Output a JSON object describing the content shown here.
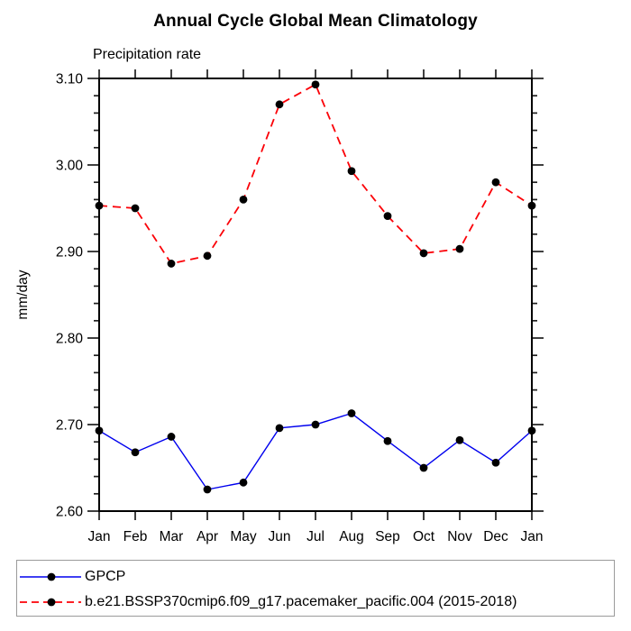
{
  "header": {
    "title": "Annual Cycle Global Mean Climatology",
    "subtitle": "Precipitation rate"
  },
  "chart_data": {
    "type": "line",
    "title": "Annual Cycle Global Mean Climatology",
    "subtitle": "Precipitation rate",
    "xlabel": "",
    "ylabel": "mm/day",
    "categories": [
      "Jan",
      "Feb",
      "Mar",
      "Apr",
      "May",
      "Jun",
      "Jul",
      "Aug",
      "Sep",
      "Oct",
      "Nov",
      "Dec",
      "Jan"
    ],
    "ylim": [
      2.6,
      3.1
    ],
    "y_major_step": 0.1,
    "y_minor_step": 0.02,
    "y_tick_labels": [
      "2.60",
      "2.70",
      "2.80",
      "2.90",
      "3.00",
      "3.10"
    ],
    "grid": false,
    "legend_position": "bottom",
    "series": [
      {
        "name": "GPCP",
        "color": "#0000ee",
        "line_style": "solid",
        "marker": "circle",
        "marker_color": "#000000",
        "values": [
          2.693,
          2.668,
          2.686,
          2.625,
          2.633,
          2.696,
          2.7,
          2.713,
          2.681,
          2.65,
          2.682,
          2.656,
          2.693
        ]
      },
      {
        "name": "b.e21.BSSP370cmip6.f09_g17.pacemaker_pacific.004 (2015-2018)",
        "color": "#fb0007",
        "line_style": "dashed",
        "marker": "circle",
        "marker_color": "#000000",
        "values": [
          2.953,
          2.95,
          2.886,
          2.895,
          2.96,
          3.07,
          3.093,
          2.993,
          2.941,
          2.898,
          2.903,
          2.98,
          2.953
        ]
      }
    ]
  }
}
